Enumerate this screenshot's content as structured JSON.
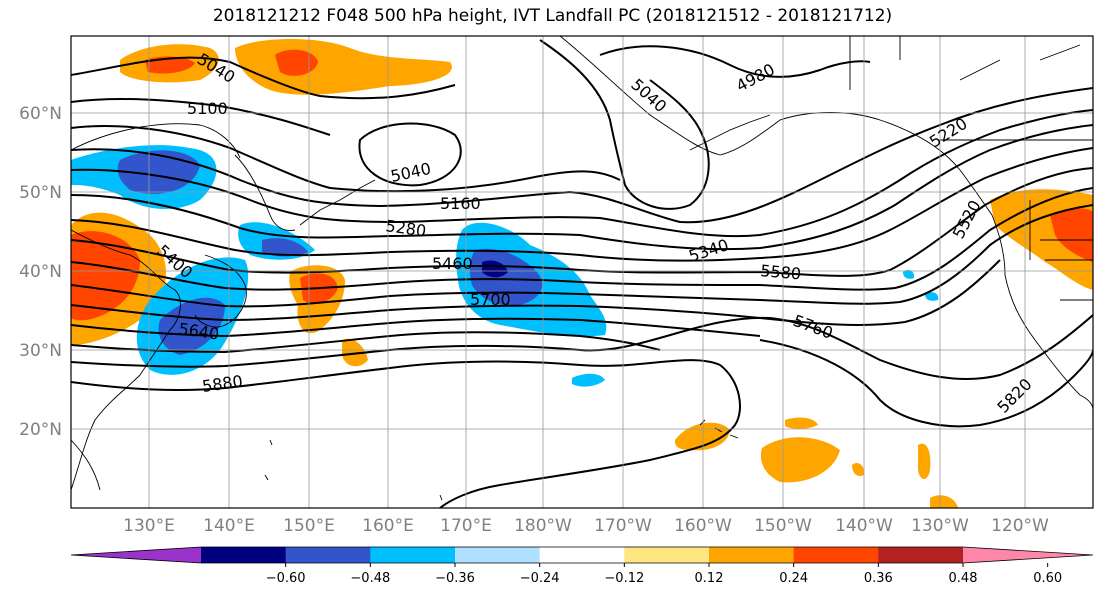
{
  "title": "2018121212 F048 500 hPa height, IVT Landfall PC (2018121512 - 2018121712)",
  "latitude_labels": [
    "60°N",
    "50°N",
    "40°N",
    "30°N",
    "20°N"
  ],
  "longitude_labels": [
    "130°E",
    "140°E",
    "150°E",
    "160°E",
    "170°E",
    "180°W",
    "170°W",
    "160°W",
    "150°W",
    "140°W",
    "130°W",
    "120°W"
  ],
  "contour_labels": [
    "5040",
    "5100",
    "5040",
    "5040",
    "4980",
    "5220",
    "5160",
    "5280",
    "5400",
    "5460",
    "5340",
    "5580",
    "5700",
    "5640",
    "5760",
    "5880",
    "5820",
    "5520"
  ],
  "colorbar": {
    "tick_labels": [
      "−0.60",
      "−0.48",
      "−0.36",
      "−0.24",
      "−0.12",
      "0.12",
      "0.24",
      "0.36",
      "0.48",
      "0.60"
    ],
    "colors": [
      "#9933cc",
      "#000080",
      "#3355cc",
      "#00bfff",
      "#b0e0ff",
      "#ffffff",
      "#ffe680",
      "#ffa500",
      "#ff4500",
      "#b22222",
      "#ff88aa"
    ]
  },
  "colors": {
    "grid": "#999999",
    "contour": "#000000",
    "coast": "#000000"
  }
}
